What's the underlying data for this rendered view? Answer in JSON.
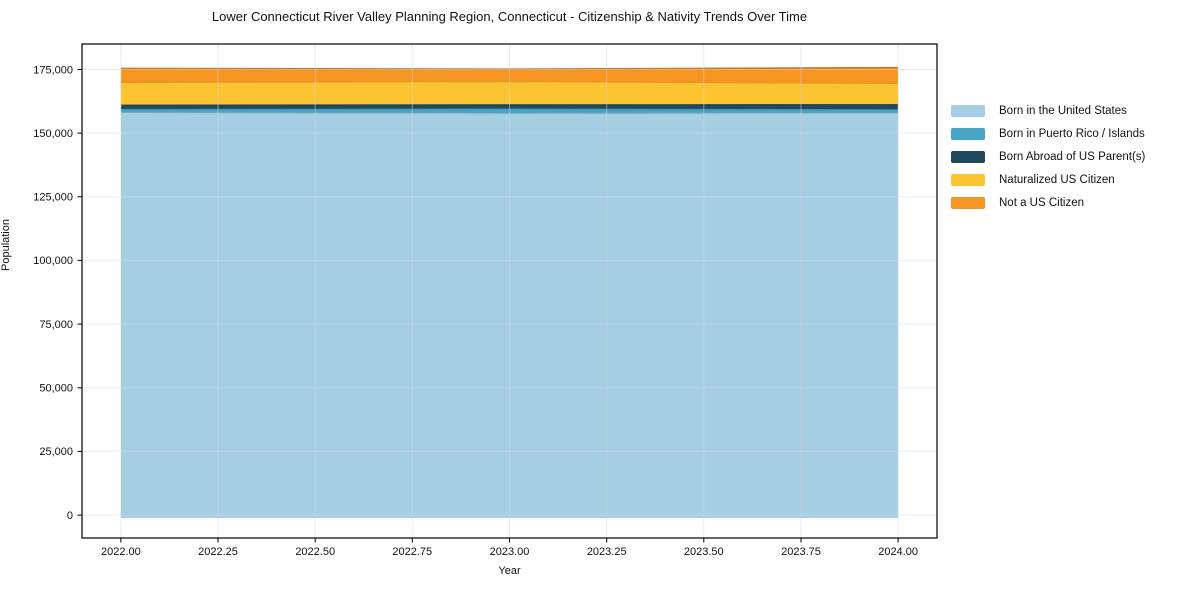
{
  "chart_data": {
    "type": "area",
    "stacked": true,
    "title": "Lower Connecticut River Valley Planning Region, Connecticut - Citizenship & Nativity Trends Over Time",
    "xlabel": "Year",
    "ylabel": "Population",
    "x": [
      2022,
      2023,
      2024
    ],
    "series": [
      {
        "name": "Born in the United States",
        "color": "#a5cee3",
        "values": [
          158200,
          157900,
          158000
        ]
      },
      {
        "name": "Born in Puerto Rico / Islands",
        "color": "#46a5c5",
        "values": [
          1300,
          1800,
          1400
        ]
      },
      {
        "name": "Born Abroad of US Parent(s)",
        "color": "#21485e",
        "values": [
          1700,
          1600,
          2000
        ]
      },
      {
        "name": "Naturalized US Citizen",
        "color": "#fcc330",
        "values": [
          8800,
          9000,
          8200
        ]
      },
      {
        "name": "Not a US Citizen",
        "color": "#f79522",
        "values": [
          5400,
          4800,
          6100
        ]
      }
    ],
    "xlim": [
      2021.9,
      2024.1
    ],
    "ylim": [
      -9000,
      185000
    ],
    "xticks": [
      2022.0,
      2022.25,
      2022.5,
      2022.75,
      2023.0,
      2023.25,
      2023.5,
      2023.75,
      2024.0
    ],
    "xtick_labels": [
      "2022.00",
      "2022.25",
      "2022.50",
      "2022.75",
      "2023.00",
      "2023.25",
      "2023.50",
      "2023.75",
      "2024.00"
    ],
    "yticks": [
      0,
      25000,
      50000,
      75000,
      100000,
      125000,
      150000,
      175000
    ],
    "ytick_labels": [
      "0",
      "25,000",
      "50,000",
      "75,000",
      "100,000",
      "125,000",
      "150,000",
      "175,000"
    ],
    "grid": true,
    "legend_position": "right of plot, no frame"
  }
}
